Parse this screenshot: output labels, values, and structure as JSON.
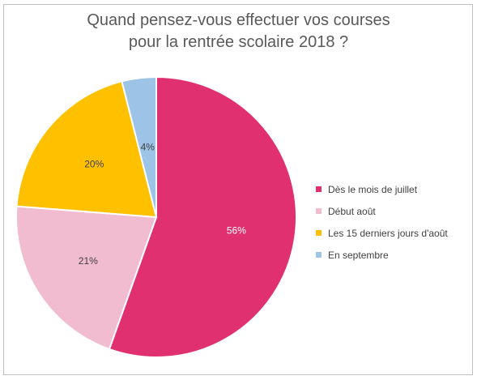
{
  "chart_data": {
    "type": "pie",
    "title_lines": [
      "Quand pensez-vous effectuer vos courses",
      "pour la rentrée scolaire 2018 ?"
    ],
    "categories": [
      "Dès le mois de juillet",
      "Début août",
      "Les 15 derniers jours d'août",
      "En septembre"
    ],
    "values": [
      56,
      21,
      20,
      4
    ],
    "data_labels": [
      "56%",
      "21%",
      "20%",
      "4%"
    ],
    "colors": [
      "#e0306f",
      "#f2bcd0",
      "#ffc000",
      "#9dc3e6"
    ],
    "label_colors": [
      "#ffffff",
      "#404040",
      "#404040",
      "#404040"
    ],
    "legend_position": "right",
    "start_angle_deg": 0,
    "direction": "clockwise"
  }
}
